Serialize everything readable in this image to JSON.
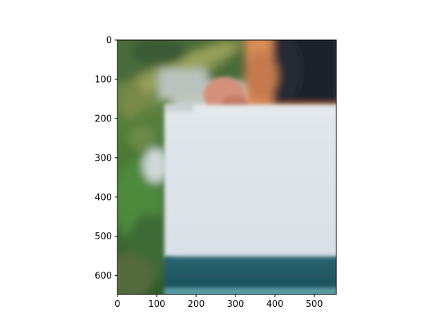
{
  "image_axes": {
    "x_range": [
      0,
      556
    ],
    "y_range": [
      0,
      648
    ],
    "y_inverted": true,
    "x_ticks": [
      "0",
      "100",
      "200",
      "300",
      "400",
      "500"
    ],
    "y_ticks": [
      "0",
      "100",
      "200",
      "300",
      "400",
      "500",
      "600"
    ]
  },
  "image_content": {
    "description_colors": {
      "foliage": "#5d7a3a",
      "paper": "#dfe6ea",
      "teal_band": "#1f5560",
      "skin": "#d88a5a",
      "dark_clothing": "#1c2029"
    }
  }
}
